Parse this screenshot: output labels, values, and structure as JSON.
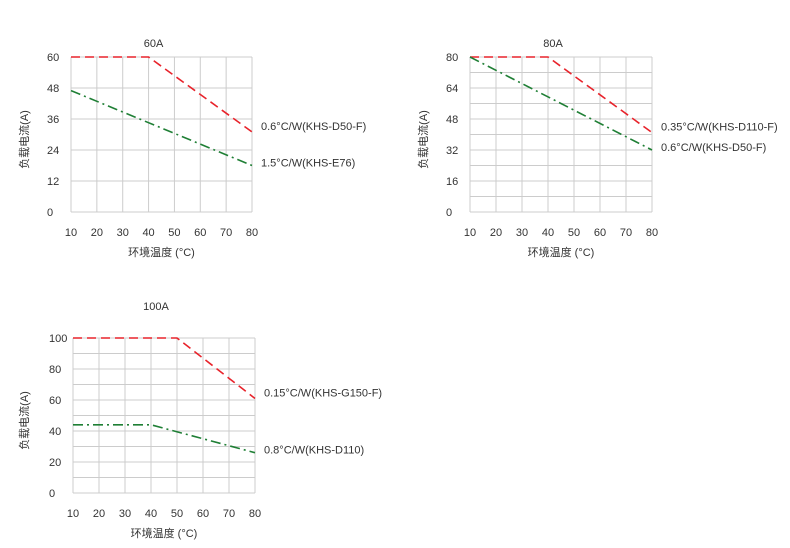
{
  "colors": {
    "red": "#e8232b",
    "green": "#1f7f35",
    "grid": "#cccccc"
  },
  "chart_data": [
    {
      "type": "line",
      "title": "60A",
      "xlabel": "环境温度 (°C)",
      "ylabel": "负载电流(A)",
      "xlim": [
        10,
        80
      ],
      "ylim": [
        0,
        60
      ],
      "xticks": [
        "10",
        "20",
        "30",
        "40",
        "50",
        "60",
        "70",
        "80"
      ],
      "yticks": [
        "0",
        "12",
        "24",
        "36",
        "48",
        "60"
      ],
      "minor_y_grid": false,
      "series": [
        {
          "name": "0.6°C/W(KHS-D50-F)",
          "color": "red",
          "style": "dash",
          "x": [
            10,
            40,
            80
          ],
          "y": [
            60,
            60,
            31
          ]
        },
        {
          "name": "1.5°C/W(KHS-E76)",
          "color": "green",
          "style": "dashdot",
          "x": [
            10,
            80
          ],
          "y": [
            47,
            18
          ]
        }
      ]
    },
    {
      "type": "line",
      "title": "80A",
      "xlabel": "环境温度 (°C)",
      "ylabel": "负载电流(A)",
      "xlim": [
        10,
        80
      ],
      "ylim": [
        0,
        80
      ],
      "xticks": [
        "10",
        "20",
        "30",
        "40",
        "50",
        "60",
        "70",
        "80"
      ],
      "yticks": [
        "0",
        "16",
        "32",
        "48",
        "64",
        "80"
      ],
      "minor_y_grid": true,
      "series": [
        {
          "name": "0.35°C/W(KHS-D110-F)",
          "color": "red",
          "style": "dash",
          "x": [
            10,
            40,
            80
          ],
          "y": [
            80,
            80,
            41
          ]
        },
        {
          "name": "0.6°C/W(KHS-D50-F)",
          "color": "green",
          "style": "dashdot",
          "x": [
            10,
            80
          ],
          "y": [
            80,
            32
          ]
        }
      ]
    },
    {
      "type": "line",
      "title": "100A",
      "xlabel": "环境温度 (°C)",
      "ylabel": "负载电流(A)",
      "xlim": [
        10,
        80
      ],
      "ylim": [
        0,
        100
      ],
      "xticks": [
        "10",
        "20",
        "30",
        "40",
        "50",
        "60",
        "70",
        "80"
      ],
      "yticks": [
        "0",
        "20",
        "40",
        "60",
        "80",
        "100"
      ],
      "minor_y_grid": true,
      "series": [
        {
          "name": "0.15°C/W(KHS-G150-F)",
          "color": "red",
          "style": "dash",
          "x": [
            10,
            50,
            80
          ],
          "y": [
            100,
            100,
            61
          ]
        },
        {
          "name": "0.8°C/W(KHS-D110)",
          "color": "green",
          "style": "dashdot",
          "x": [
            10,
            40,
            80
          ],
          "y": [
            44,
            44,
            26
          ]
        }
      ]
    }
  ]
}
